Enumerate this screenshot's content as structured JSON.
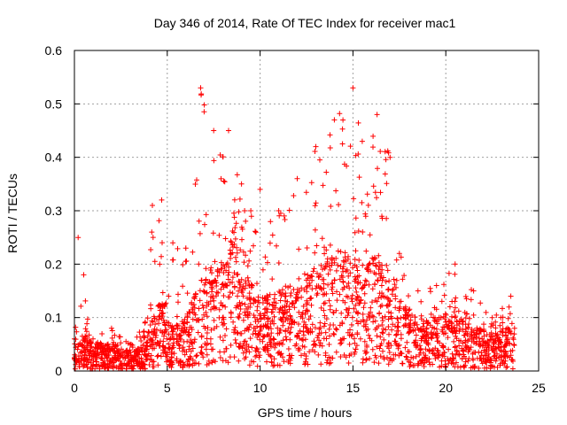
{
  "chart_data": {
    "type": "scatter",
    "title": "Day 346 of 2014, Rate Of TEC Index for receiver mac1",
    "xlabel": "GPS time / hours",
    "ylabel": "ROTI / TECUs",
    "xlim": [
      0,
      25
    ],
    "ylim": [
      0,
      0.6
    ],
    "xticks": [
      0,
      5,
      10,
      15,
      20,
      25
    ],
    "yticks": [
      0,
      0.1,
      0.2,
      0.3,
      0.4,
      0.5,
      0.6
    ],
    "xtick_labels": [
      "0",
      "5",
      "10",
      "15",
      "20",
      "25"
    ],
    "ytick_labels": [
      "0",
      "0.1",
      "0.2",
      "0.3",
      "0.4",
      "0.5",
      "0.6"
    ],
    "grid": true,
    "marker": "+",
    "color": "#ff0000",
    "series": [
      {
        "name": "ROTI",
        "x_range": [
          0,
          23.7
        ],
        "envelope": [
          {
            "x": 0.0,
            "typ": 0.02,
            "max": 0.06
          },
          {
            "x": 0.2,
            "typ": 0.03,
            "max": 0.25
          },
          {
            "x": 0.5,
            "typ": 0.04,
            "max": 0.18
          },
          {
            "x": 1.0,
            "typ": 0.03,
            "max": 0.06
          },
          {
            "x": 2.0,
            "typ": 0.03,
            "max": 0.08
          },
          {
            "x": 3.0,
            "typ": 0.02,
            "max": 0.05
          },
          {
            "x": 3.8,
            "typ": 0.03,
            "max": 0.09
          },
          {
            "x": 4.2,
            "typ": 0.06,
            "max": 0.31
          },
          {
            "x": 4.7,
            "typ": 0.08,
            "max": 0.32
          },
          {
            "x": 5.3,
            "typ": 0.05,
            "max": 0.24
          },
          {
            "x": 6.0,
            "typ": 0.06,
            "max": 0.23
          },
          {
            "x": 6.8,
            "typ": 0.1,
            "max": 0.53
          },
          {
            "x": 7.5,
            "typ": 0.12,
            "max": 0.45
          },
          {
            "x": 8.3,
            "typ": 0.14,
            "max": 0.45
          },
          {
            "x": 9.0,
            "typ": 0.15,
            "max": 0.35
          },
          {
            "x": 9.5,
            "typ": 0.1,
            "max": 0.3
          },
          {
            "x": 10.0,
            "typ": 0.08,
            "max": 0.34
          },
          {
            "x": 11.0,
            "typ": 0.09,
            "max": 0.3
          },
          {
            "x": 12.0,
            "typ": 0.1,
            "max": 0.36
          },
          {
            "x": 13.0,
            "typ": 0.12,
            "max": 0.42
          },
          {
            "x": 14.0,
            "typ": 0.13,
            "max": 0.47
          },
          {
            "x": 15.0,
            "typ": 0.14,
            "max": 0.53
          },
          {
            "x": 15.5,
            "typ": 0.12,
            "max": 0.43
          },
          {
            "x": 16.3,
            "typ": 0.13,
            "max": 0.48
          },
          {
            "x": 17.0,
            "typ": 0.12,
            "max": 0.4
          },
          {
            "x": 17.5,
            "typ": 0.08,
            "max": 0.22
          },
          {
            "x": 18.5,
            "typ": 0.06,
            "max": 0.15
          },
          {
            "x": 19.5,
            "typ": 0.06,
            "max": 0.16
          },
          {
            "x": 20.5,
            "typ": 0.07,
            "max": 0.2
          },
          {
            "x": 21.5,
            "typ": 0.05,
            "max": 0.15
          },
          {
            "x": 22.5,
            "typ": 0.04,
            "max": 0.1
          },
          {
            "x": 23.5,
            "typ": 0.05,
            "max": 0.14
          },
          {
            "x": 23.7,
            "typ": 0.03,
            "max": 0.08
          }
        ]
      }
    ]
  }
}
